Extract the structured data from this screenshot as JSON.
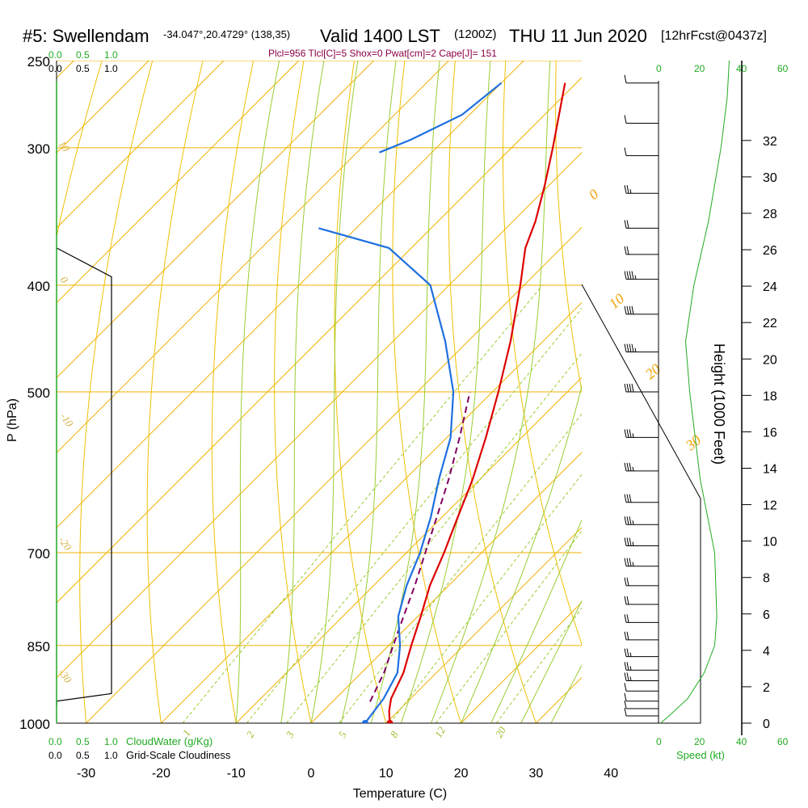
{
  "title": {
    "station": "#5: Swellendam",
    "coords": "-34.047°,20.4729° (138,35)",
    "valid": "Valid 1400 LST",
    "zulu": "(1200Z)",
    "date": "THU 11 Jun 2020",
    "forecast": "[12hrFcst@0437z]"
  },
  "params_line": "Plcl=956 Tlcl[C]=5 Shox=0 Pwat[cm]=2 Cape[J]= 151",
  "top_scales": {
    "green": [
      "0.0",
      "0.5",
      "1.0"
    ],
    "black": [
      "0.0",
      "0.5",
      "1.0"
    ],
    "speed": [
      "0",
      "20",
      "40",
      "60"
    ]
  },
  "bottom_scales": {
    "cloudwater_ticks": [
      "0.0",
      "0.5",
      "1.0"
    ],
    "cloudwater_label": "CloudWater (g/Kg)",
    "cloudiness_ticks": [
      "0.0",
      "0.5",
      "1.0"
    ],
    "cloudiness_label": "Grid-Scale Cloudiness",
    "speed_ticks": [
      "0",
      "20",
      "40",
      "60"
    ],
    "speed_label": "Speed (kt)"
  },
  "colors": {
    "isobar": "#f0b000",
    "isotherm": "#f0b000",
    "dry_adiabat": "#f0c000",
    "moist_adiabat": "#9acd32",
    "mixing_ratio": "#9acd32",
    "temperature": "#dd0000",
    "dewpoint": "#1e6fe0",
    "parcel": "#800060",
    "height": "#22aa22"
  },
  "chart_data": {
    "type": "line",
    "xlabel": "Temperature (C)",
    "ylabel": "P (hPa)",
    "right_label": "Height (1000 Feet)",
    "xlim": [
      -35,
      35
    ],
    "pressure_range": [
      250,
      1000
    ],
    "x_ticks": [
      "-30",
      "-20",
      "-10",
      "0",
      "10",
      "20",
      "30",
      "40"
    ],
    "pressure_ticks": [
      {
        "p": 250,
        "label": "250"
      },
      {
        "p": 300,
        "label": "300"
      },
      {
        "p": 400,
        "label": "400"
      },
      {
        "p": 500,
        "label": "500"
      },
      {
        "p": 700,
        "label": "700"
      },
      {
        "p": 850,
        "label": "850"
      },
      {
        "p": 1000,
        "label": "1000"
      }
    ],
    "height_ticks": [
      "0",
      "2",
      "4",
      "6",
      "8",
      "10",
      "12",
      "14",
      "16",
      "18",
      "20",
      "22",
      "24",
      "26",
      "28",
      "30",
      "32"
    ],
    "isotherm_labels": [
      "0",
      "10",
      "20",
      "30"
    ],
    "dry_adiabat_labels": [
      "10",
      "0",
      "-10",
      "-20",
      "-30"
    ],
    "mixing_ratio_labels": [
      "1",
      "2",
      "3",
      "5",
      "8",
      "12",
      "20"
    ],
    "temperature": [
      {
        "p": 1000,
        "t": 10.5
      },
      {
        "p": 975,
        "t": 8.8
      },
      {
        "p": 950,
        "t": 7.4
      },
      {
        "p": 900,
        "t": 5.6
      },
      {
        "p": 850,
        "t": 3.0
      },
      {
        "p": 800,
        "t": 0.4
      },
      {
        "p": 750,
        "t": -2.5
      },
      {
        "p": 700,
        "t": -5.0
      },
      {
        "p": 650,
        "t": -7.9
      },
      {
        "p": 600,
        "t": -11.0
      },
      {
        "p": 550,
        "t": -14.8
      },
      {
        "p": 500,
        "t": -19.2
      },
      {
        "p": 450,
        "t": -24.3
      },
      {
        "p": 400,
        "t": -30.5
      },
      {
        "p": 370,
        "t": -34.8
      },
      {
        "p": 350,
        "t": -37.0
      },
      {
        "p": 325,
        "t": -40.5
      },
      {
        "p": 300,
        "t": -44.5
      },
      {
        "p": 275,
        "t": -49.0
      },
      {
        "p": 262,
        "t": -51.5
      }
    ],
    "dewpoint": [
      {
        "p": 1000,
        "t": 7.2
      },
      {
        "p": 975,
        "t": 6.8
      },
      {
        "p": 950,
        "t": 6.4
      },
      {
        "p": 900,
        "t": 4.8
      },
      {
        "p": 850,
        "t": 1.5
      },
      {
        "p": 800,
        "t": -2.6
      },
      {
        "p": 750,
        "t": -5.6
      },
      {
        "p": 700,
        "t": -8.2
      },
      {
        "p": 650,
        "t": -11.5
      },
      {
        "p": 600,
        "t": -15.5
      },
      {
        "p": 550,
        "t": -19.5
      },
      {
        "p": 500,
        "t": -25.2
      },
      {
        "p": 450,
        "t": -33.0
      },
      {
        "p": 400,
        "t": -42.5
      },
      {
        "p": 370,
        "t": -53.0
      },
      {
        "p": 355,
        "t": -65.0
      }
    ],
    "dewpoint_upper": [
      {
        "p": 303,
        "t": -67.0
      },
      {
        "p": 295,
        "t": -64.5
      },
      {
        "p": 280,
        "t": -61.0
      },
      {
        "p": 262,
        "t": -60.0
      }
    ],
    "parcel": [
      {
        "p": 956,
        "t": 5.0
      },
      {
        "p": 900,
        "t": 3.0
      },
      {
        "p": 850,
        "t": 0.6
      },
      {
        "p": 800,
        "t": -1.9
      },
      {
        "p": 750,
        "t": -4.5
      },
      {
        "p": 700,
        "t": -7.5
      },
      {
        "p": 650,
        "t": -10.7
      },
      {
        "p": 600,
        "t": -14.2
      },
      {
        "p": 550,
        "t": -18.3
      },
      {
        "p": 500,
        "t": -23.0
      }
    ],
    "wind_barbs": [
      {
        "p": 262,
        "speed_kt": 10
      },
      {
        "p": 285,
        "speed_kt": 10
      },
      {
        "p": 305,
        "speed_kt": 10
      },
      {
        "p": 330,
        "speed_kt": 15
      },
      {
        "p": 355,
        "speed_kt": 20
      },
      {
        "p": 375,
        "speed_kt": 20
      },
      {
        "p": 395,
        "speed_kt": 35
      },
      {
        "p": 425,
        "speed_kt": 40
      },
      {
        "p": 460,
        "speed_kt": 35
      },
      {
        "p": 500,
        "speed_kt": 40
      },
      {
        "p": 550,
        "speed_kt": 25
      },
      {
        "p": 590,
        "speed_kt": 25
      },
      {
        "p": 630,
        "speed_kt": 30
      },
      {
        "p": 660,
        "speed_kt": 25
      },
      {
        "p": 690,
        "speed_kt": 25
      },
      {
        "p": 720,
        "speed_kt": 25
      },
      {
        "p": 750,
        "speed_kt": 20
      },
      {
        "p": 780,
        "speed_kt": 20
      },
      {
        "p": 810,
        "speed_kt": 20
      },
      {
        "p": 840,
        "speed_kt": 20
      },
      {
        "p": 870,
        "speed_kt": 15
      },
      {
        "p": 895,
        "speed_kt": 15
      },
      {
        "p": 915,
        "speed_kt": 15
      },
      {
        "p": 935,
        "speed_kt": 10
      },
      {
        "p": 955,
        "speed_kt": 10
      },
      {
        "p": 970,
        "speed_kt": 10
      },
      {
        "p": 985,
        "speed_kt": 10
      }
    ],
    "cloudiness": [
      {
        "p": 370,
        "value": 0.0
      },
      {
        "p": 393,
        "value": 1.0
      },
      {
        "p": 940,
        "value": 1.0
      },
      {
        "p": 955,
        "value": 0.0
      }
    ],
    "speed_profile": [
      {
        "p": 1000,
        "speed_kt": 1
      },
      {
        "p": 985,
        "speed_kt": 5
      },
      {
        "p": 950,
        "speed_kt": 14
      },
      {
        "p": 900,
        "speed_kt": 22
      },
      {
        "p": 850,
        "speed_kt": 27
      },
      {
        "p": 800,
        "speed_kt": 28
      },
      {
        "p": 700,
        "speed_kt": 27
      },
      {
        "p": 600,
        "speed_kt": 20
      },
      {
        "p": 500,
        "speed_kt": 15
      },
      {
        "p": 450,
        "speed_kt": 13
      },
      {
        "p": 400,
        "speed_kt": 17
      },
      {
        "p": 350,
        "speed_kt": 24
      },
      {
        "p": 300,
        "speed_kt": 30
      },
      {
        "p": 270,
        "speed_kt": 33
      },
      {
        "p": 250,
        "speed_kt": 34
      }
    ]
  }
}
